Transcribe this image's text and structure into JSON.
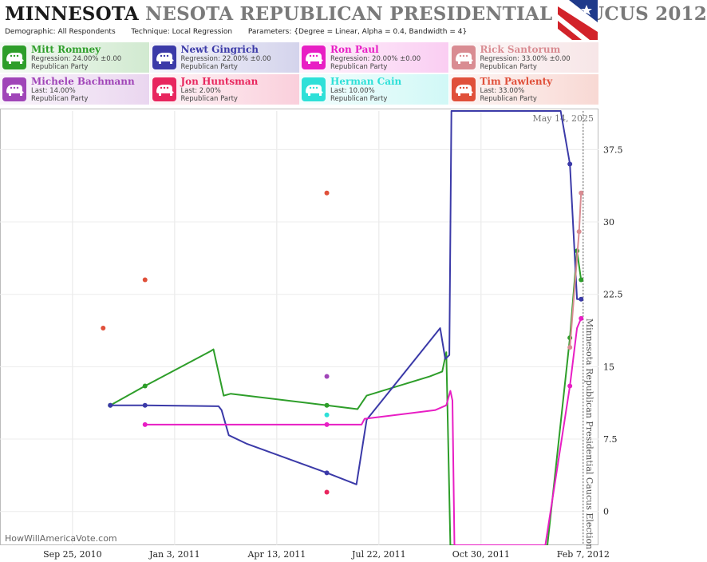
{
  "header": {
    "title_main": "MINNESOTA",
    "title_rest": "NESOTA REPUBLICAN PRESIDENTIAL CAUCUS 2012",
    "demographic_label": "Demographic:",
    "demographic_value": "All Respondents",
    "technique_label": "Technique:",
    "technique_value": "Local Regression",
    "parameters_label": "Parameters:",
    "parameters_value": "{Degree = Linear, Alpha = 0.4, Bandwidth = 4}"
  },
  "legend": [
    {
      "name": "Mitt Romney",
      "stat": "Regression: 24.00% ±0.00",
      "party": "Republican Party",
      "color": "#2e9e2a"
    },
    {
      "name": "Newt Gingrich",
      "stat": "Regression: 22.00% ±0.00",
      "party": "Republican Party",
      "color": "#3b3aa8"
    },
    {
      "name": "Ron Paul",
      "stat": "Regression: 20.00% ±0.00",
      "party": "Republican Party",
      "color": "#e81ec4"
    },
    {
      "name": "Rick Santorum",
      "stat": "Regression: 33.00% ±0.00",
      "party": "Republican Party",
      "color": "#d98c92"
    },
    {
      "name": "Michele Bachmann",
      "stat": "Last: 14.00%",
      "party": "Republican Party",
      "color": "#a045b8"
    },
    {
      "name": "Jon Huntsman",
      "stat": "Last: 2.00%",
      "party": "Republican Party",
      "color": "#e8265e"
    },
    {
      "name": "Herman Cain",
      "stat": "Last: 10.00%",
      "party": "Republican Party",
      "color": "#2ee0d8"
    },
    {
      "name": "Tim Pawlenty",
      "stat": "Last: 33.00%",
      "party": "Republican Party",
      "color": "#e0503a"
    }
  ],
  "footer": {
    "watermark": "HowWillAmericaVote.com"
  },
  "chart_data": {
    "type": "line",
    "title": "MINNESOTA NESOTA REPUBLICAN PRESIDENTIAL CAUCUS 2012",
    "date_label": "May 14, 2025",
    "event_label": "Minnesota Republican Presidential Caucus Election",
    "event_date": "2012-02-07",
    "xlim": [
      "2010-07-16",
      "2012-02-22"
    ],
    "ylim": [
      -3.5,
      41.5
    ],
    "x_ticks": [
      {
        "date": "2010-09-25",
        "label": "Sep 25, 2010"
      },
      {
        "date": "2011-01-03",
        "label": "Jan 3, 2011"
      },
      {
        "date": "2011-04-13",
        "label": "Apr 13, 2011"
      },
      {
        "date": "2011-07-22",
        "label": "Jul 22, 2011"
      },
      {
        "date": "2011-10-30",
        "label": "Oct 30, 2011"
      },
      {
        "date": "2012-02-07",
        "label": "Feb 7, 2012"
      }
    ],
    "y_ticks": [
      {
        "value": 0,
        "label": "0"
      },
      {
        "value": 7.5,
        "label": "7.5"
      },
      {
        "value": 15,
        "label": "15"
      },
      {
        "value": 22.5,
        "label": "22.5"
      },
      {
        "value": 30,
        "label": "30"
      },
      {
        "value": 37.5,
        "label": "37.5"
      }
    ],
    "grid": true,
    "series": [
      {
        "name": "Mitt Romney",
        "color": "#2e9e2a",
        "points": [
          [
            "2010-11-01",
            11
          ],
          [
            "2010-12-05",
            13
          ],
          [
            "2011-06-01",
            11
          ],
          [
            "2012-01-25",
            18
          ],
          [
            "2012-02-01",
            27
          ],
          [
            "2012-02-05",
            24
          ]
        ],
        "line": [
          [
            "2010-11-01",
            11
          ],
          [
            "2010-12-05",
            13
          ],
          [
            "2011-02-07",
            16.6
          ],
          [
            "2011-02-10",
            16.8
          ],
          [
            "2011-02-20",
            12
          ],
          [
            "2011-02-27",
            12.2
          ],
          [
            "2011-06-01",
            11
          ],
          [
            "2011-07-01",
            10.6
          ],
          [
            "2011-07-10",
            12
          ],
          [
            "2011-09-10",
            14
          ],
          [
            "2011-09-22",
            14.5
          ],
          [
            "2011-09-26",
            16.5
          ],
          [
            "2011-09-30",
            -3.5
          ],
          [
            "2012-01-03",
            -3.5
          ],
          [
            "2012-01-25",
            18
          ],
          [
            "2012-02-01",
            27
          ],
          [
            "2012-02-05",
            24
          ]
        ]
      },
      {
        "name": "Newt Gingrich",
        "color": "#3b3aa8",
        "points": [
          [
            "2010-11-01",
            11
          ],
          [
            "2010-12-05",
            11
          ],
          [
            "2011-06-01",
            4
          ],
          [
            "2012-01-25",
            36
          ],
          [
            "2012-02-05",
            22
          ]
        ],
        "line": [
          [
            "2010-11-01",
            11
          ],
          [
            "2010-12-05",
            11
          ],
          [
            "2011-02-15",
            10.9
          ],
          [
            "2011-02-18",
            10.5
          ],
          [
            "2011-02-25",
            7.9
          ],
          [
            "2011-03-15",
            7
          ],
          [
            "2011-06-01",
            4
          ],
          [
            "2011-06-30",
            2.8
          ],
          [
            "2011-07-10",
            9.5
          ],
          [
            "2011-09-20",
            19
          ],
          [
            "2011-09-25",
            15.8
          ],
          [
            "2011-09-29",
            16.2
          ],
          [
            "2011-10-01",
            41.5
          ],
          [
            "2012-01-16",
            41.5
          ],
          [
            "2012-01-25",
            36
          ],
          [
            "2012-02-01",
            22
          ],
          [
            "2012-02-05",
            22
          ]
        ]
      },
      {
        "name": "Ron Paul",
        "color": "#e81ec4",
        "points": [
          [
            "2010-12-05",
            9
          ],
          [
            "2011-06-01",
            9
          ],
          [
            "2012-01-25",
            13
          ],
          [
            "2012-02-05",
            20
          ]
        ],
        "line": [
          [
            "2010-12-05",
            9
          ],
          [
            "2011-06-01",
            9
          ],
          [
            "2011-07-05",
            9
          ],
          [
            "2011-07-08",
            9.6
          ],
          [
            "2011-09-15",
            10.5
          ],
          [
            "2011-09-26",
            11
          ],
          [
            "2011-09-30",
            12.5
          ],
          [
            "2011-10-02",
            11.5
          ],
          [
            "2011-10-04",
            -3.5
          ],
          [
            "2012-01-01",
            -3.5
          ],
          [
            "2012-01-25",
            13
          ],
          [
            "2012-02-01",
            19
          ],
          [
            "2012-02-05",
            20
          ]
        ]
      },
      {
        "name": "Rick Santorum",
        "color": "#d98c92",
        "points": [
          [
            "2012-01-25",
            17
          ],
          [
            "2012-02-03",
            29
          ],
          [
            "2012-02-05",
            33
          ]
        ],
        "line": [
          [
            "2012-01-25",
            17
          ],
          [
            "2012-02-03",
            29
          ],
          [
            "2012-02-05",
            33
          ]
        ]
      },
      {
        "name": "Michele Bachmann",
        "color": "#a045b8",
        "points": [
          [
            "2011-06-01",
            14
          ]
        ],
        "line": []
      },
      {
        "name": "Jon Huntsman",
        "color": "#e8265e",
        "points": [
          [
            "2011-06-01",
            2
          ]
        ],
        "line": []
      },
      {
        "name": "Herman Cain",
        "color": "#2ee0d8",
        "points": [
          [
            "2011-06-01",
            10
          ]
        ],
        "line": []
      },
      {
        "name": "Tim Pawlenty",
        "color": "#e0503a",
        "points": [
          [
            "2010-10-25",
            19
          ],
          [
            "2010-12-05",
            24
          ],
          [
            "2011-06-01",
            33
          ]
        ],
        "line": []
      }
    ]
  }
}
